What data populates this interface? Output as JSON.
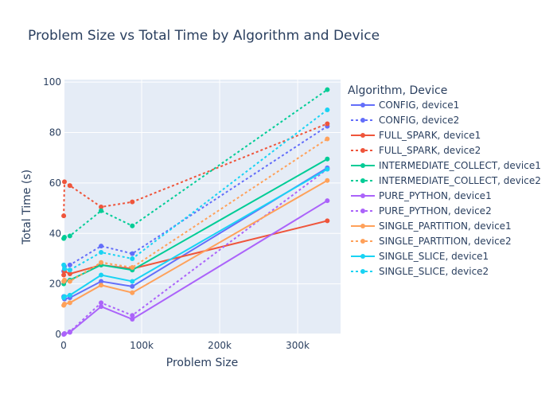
{
  "chart_data": {
    "type": "line",
    "title": "Problem Size vs Total Time by Algorithm and Device",
    "xlabel": "Problem Size",
    "ylabel": "Total Time (s)",
    "xlim": [
      0,
      355000
    ],
    "ylim": [
      0,
      101
    ],
    "x_ticks": [
      0,
      100000,
      200000,
      300000
    ],
    "x_tick_labels": [
      "0",
      "100k",
      "200k",
      "300k"
    ],
    "y_ticks": [
      0,
      20,
      40,
      60,
      80,
      100
    ],
    "y_tick_labels": [
      "0",
      "20",
      "40",
      "60",
      "80",
      "100"
    ],
    "grid": true,
    "legend_title": "Algorithm, Device",
    "legend_position": "right",
    "series": [
      {
        "name": "CONFIG, device1",
        "color": "#636efa",
        "dash": false,
        "x": [
          100,
          1000,
          8000,
          48000,
          88000,
          338000
        ],
        "y": [
          15.0,
          14.0,
          14.5,
          21.0,
          19.0,
          66.0
        ]
      },
      {
        "name": "CONFIG, device2",
        "color": "#636efa",
        "dash": true,
        "x": [
          100,
          1000,
          8000,
          48000,
          88000,
          338000
        ],
        "y": [
          25.0,
          27.0,
          27.5,
          35.0,
          32.0,
          82.5
        ]
      },
      {
        "name": "FULL_SPARK, device1",
        "color": "#ef553b",
        "dash": false,
        "x": [
          100,
          1000,
          8000,
          48000,
          88000,
          338000
        ],
        "y": [
          23.5,
          25.0,
          24.0,
          27.5,
          26.0,
          45.0
        ]
      },
      {
        "name": "FULL_SPARK, device2",
        "color": "#ef553b",
        "dash": true,
        "x": [
          100,
          1000,
          8000,
          48000,
          88000,
          338000
        ],
        "y": [
          47.0,
          60.5,
          59.0,
          50.5,
          52.5,
          83.5
        ]
      },
      {
        "name": "INTERMEDIATE_COLLECT, device1",
        "color": "#00cc96",
        "dash": false,
        "x": [
          100,
          1000,
          8000,
          48000,
          88000,
          338000
        ],
        "y": [
          20.0,
          21.0,
          21.5,
          27.5,
          25.5,
          69.5
        ]
      },
      {
        "name": "INTERMEDIATE_COLLECT, device2",
        "color": "#00cc96",
        "dash": true,
        "x": [
          100,
          1000,
          8000,
          48000,
          88000,
          338000
        ],
        "y": [
          38.0,
          38.5,
          39.0,
          49.0,
          43.0,
          97.0
        ]
      },
      {
        "name": "PURE_PYTHON, device1",
        "color": "#ab63fa",
        "dash": false,
        "x": [
          100,
          1000,
          8000,
          48000,
          88000,
          338000
        ],
        "y": [
          0.0,
          0.2,
          0.8,
          11.0,
          6.0,
          53.0
        ]
      },
      {
        "name": "PURE_PYTHON, device2",
        "color": "#ab63fa",
        "dash": true,
        "x": [
          100,
          1000,
          8000,
          48000,
          88000,
          338000
        ],
        "y": [
          0.0,
          0.3,
          1.0,
          12.5,
          7.5,
          65.5
        ]
      },
      {
        "name": "SINGLE_PARTITION, device1",
        "color": "#ffa15a",
        "dash": false,
        "x": [
          100,
          1000,
          8000,
          48000,
          88000,
          338000
        ],
        "y": [
          11.5,
          12.0,
          12.5,
          19.5,
          16.5,
          61.0
        ]
      },
      {
        "name": "SINGLE_PARTITION, device2",
        "color": "#ffa15a",
        "dash": true,
        "x": [
          100,
          1000,
          8000,
          48000,
          88000,
          338000
        ],
        "y": [
          21.0,
          21.5,
          21.0,
          28.5,
          26.5,
          77.5
        ]
      },
      {
        "name": "SINGLE_SLICE, device1",
        "color": "#19d3f3",
        "dash": false,
        "x": [
          100,
          1000,
          8000,
          48000,
          88000,
          338000
        ],
        "y": [
          14.5,
          15.0,
          15.5,
          23.5,
          21.0,
          65.5
        ]
      },
      {
        "name": "SINGLE_SLICE, device2",
        "color": "#19d3f3",
        "dash": true,
        "x": [
          100,
          1000,
          8000,
          48000,
          88000,
          338000
        ],
        "y": [
          27.5,
          26.0,
          25.5,
          32.5,
          30.0,
          89.0
        ]
      }
    ]
  }
}
